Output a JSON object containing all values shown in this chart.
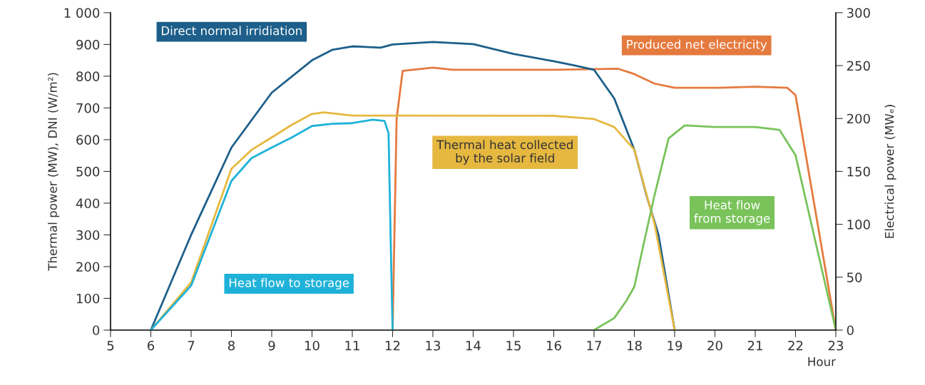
{
  "chart_data": {
    "type": "line",
    "xlabel": "Hour",
    "ylabel": "Thermal power (MW), DNI (W/m²)",
    "y2label": "Electrical power (MWₑ)",
    "xlim": [
      5,
      23
    ],
    "xticks": [
      5,
      6,
      7,
      8,
      9,
      10,
      11,
      12,
      13,
      14,
      15,
      16,
      17,
      18,
      19,
      20,
      21,
      22,
      23
    ],
    "ylim": [
      0,
      1000
    ],
    "yticks": [
      0,
      100,
      200,
      300,
      400,
      500,
      600,
      700,
      800,
      900,
      {
        "value": 1000,
        "label": "1 000"
      }
    ],
    "y2lim": [
      0,
      300
    ],
    "y2ticks": [
      0,
      50,
      100,
      150,
      200,
      250,
      300
    ],
    "grid": false,
    "legend": false,
    "marker": "none",
    "line_style": "solid",
    "series": [
      {
        "name": "Direct normal irridiation",
        "color": "#1d5f8a",
        "x": [
          6,
          7,
          8,
          9,
          10,
          10.5,
          11,
          11.7,
          12,
          13,
          14,
          15,
          16,
          16.5,
          17,
          17.5,
          18,
          18.3,
          18.6,
          19
        ],
        "values": [
          0,
          300,
          575,
          748,
          850,
          883,
          894,
          890,
          900,
          908,
          901,
          870,
          847,
          834,
          820,
          730,
          568,
          425,
          300,
          0
        ]
      },
      {
        "name": "Produced net electricity",
        "color": "#e57a3f",
        "axis": "y2",
        "x": [
          12,
          12.1,
          12.25,
          13,
          13.5,
          14,
          16,
          17.6,
          18,
          18.5,
          19,
          20,
          21,
          21.8,
          22,
          23
        ],
        "values": [
          0,
          200,
          245,
          248,
          246,
          246,
          246,
          247,
          242,
          233,
          229,
          229,
          230,
          229,
          222,
          0
        ]
      },
      {
        "name": "Thermal heat collected\nby the solar field",
        "color": "#e6b840",
        "x": [
          6,
          7,
          8,
          8.5,
          9,
          9.5,
          10,
          10.3,
          11,
          12,
          16,
          16.5,
          17,
          17.5,
          18,
          18.5,
          19
        ],
        "values": [
          0,
          150,
          508,
          568,
          607,
          647,
          681,
          686,
          676,
          676,
          675,
          670,
          665,
          640,
          568,
          335,
          0
        ]
      },
      {
        "name": "Heat flow to storage",
        "color": "#1eb2d8",
        "x": [
          6,
          7,
          8,
          8.5,
          9,
          9.5,
          10,
          10.5,
          11,
          11.5,
          11.8,
          11.9,
          11.95,
          12
        ],
        "values": [
          0,
          140,
          470,
          542,
          575,
          607,
          643,
          650,
          652,
          663,
          659,
          620,
          300,
          0
        ]
      },
      {
        "name": "Heat flow\nfrom storage",
        "color": "#79c35a",
        "x": [
          17,
          17.5,
          17.8,
          18,
          18.2,
          18.5,
          18.85,
          19.25,
          20,
          21,
          21.6,
          22,
          23
        ],
        "values": [
          0,
          38,
          92,
          137,
          254,
          425,
          604,
          645,
          640,
          640,
          631,
          551,
          0
        ]
      }
    ]
  }
}
